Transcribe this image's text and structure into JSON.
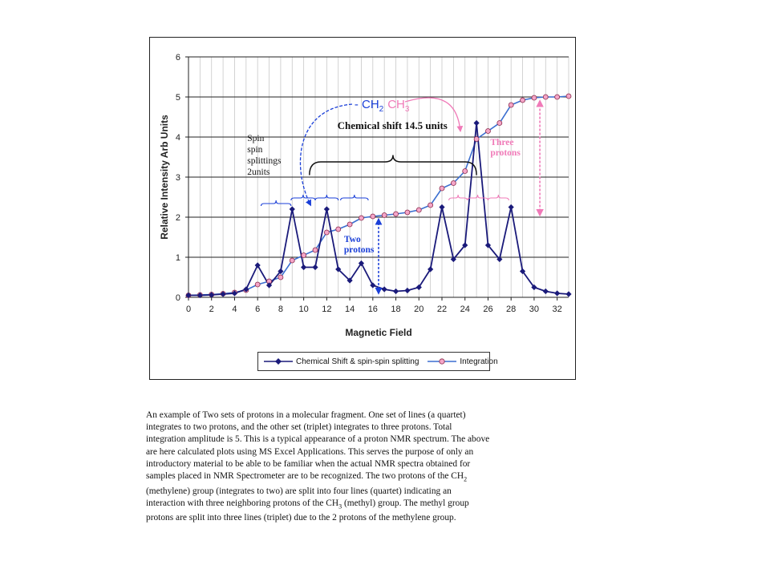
{
  "chart_data": {
    "type": "line",
    "xlabel": "Magnetic Field",
    "ylabel": "Relative Intensity Arb Units",
    "xlim": [
      0,
      33
    ],
    "ylim": [
      0,
      6
    ],
    "xticks": [
      0,
      2,
      4,
      6,
      8,
      10,
      12,
      14,
      16,
      18,
      20,
      22,
      24,
      26,
      28,
      30,
      32
    ],
    "yticks": [
      0,
      1,
      2,
      3,
      4,
      5,
      6
    ],
    "grid": true,
    "legend_position": "bottom",
    "series": [
      {
        "name": "Chemical Shift & spin-spin splitting",
        "color": "#1a1a7a",
        "marker": "diamond",
        "x": [
          0,
          1,
          2,
          3,
          4,
          5,
          6,
          7,
          8,
          9,
          10,
          11,
          12,
          13,
          14,
          15,
          16,
          17,
          18,
          19,
          20,
          21,
          22,
          23,
          24,
          25,
          26,
          27,
          28,
          29,
          30,
          31,
          32,
          33
        ],
        "values": [
          0.05,
          0.05,
          0.06,
          0.08,
          0.1,
          0.2,
          0.8,
          0.3,
          0.65,
          2.2,
          0.75,
          0.75,
          2.2,
          0.7,
          0.42,
          0.85,
          0.3,
          0.2,
          0.15,
          0.17,
          0.25,
          0.7,
          2.25,
          0.95,
          1.3,
          4.35,
          1.3,
          0.95,
          2.25,
          0.65,
          0.25,
          0.15,
          0.1,
          0.08
        ]
      },
      {
        "name": "Integration",
        "color": "#3b6fd0",
        "marker": "circle",
        "marker_fill": "#f4a6c8",
        "x": [
          0,
          1,
          2,
          3,
          4,
          5,
          6,
          7,
          8,
          9,
          10,
          11,
          12,
          13,
          14,
          15,
          16,
          17,
          18,
          19,
          20,
          21,
          22,
          23,
          24,
          25,
          26,
          27,
          28,
          29,
          30,
          31,
          32,
          33
        ],
        "values": [
          0.05,
          0.06,
          0.07,
          0.09,
          0.12,
          0.18,
          0.32,
          0.4,
          0.5,
          0.92,
          1.05,
          1.18,
          1.62,
          1.7,
          1.82,
          1.98,
          2.02,
          2.05,
          2.08,
          2.12,
          2.18,
          2.3,
          2.72,
          2.85,
          3.15,
          3.95,
          4.15,
          4.35,
          4.8,
          4.92,
          4.98,
          5.0,
          5.0,
          5.02
        ]
      }
    ],
    "annotations": {
      "group_prefix": "- CH",
      "group_prefix_sub": "2",
      "group_suffix": "CH",
      "group_suffix_sub": "3",
      "chemical_shift_label": "Chemical shift 14.5 units",
      "spin_label_lines": [
        "Spin",
        "spin",
        "splittings",
        "2units"
      ],
      "two_protons_lines": [
        "Two",
        "protons"
      ],
      "three_protons_lines": [
        "Three",
        "protons"
      ]
    }
  },
  "colors": {
    "methylene": "#1a3fd8",
    "methyl": "#f07ab8",
    "grid": "#c8c8c8"
  },
  "caption": {
    "l1": "An example of Two sets of protons in a molecular fragment. One set of lines (a quartet)",
    "l2": "integrates to two protons, and the other set (triplet) integrates to three protons. Total",
    "l3": "integration amplitude is 5. This is a typical appearance of a proton NMR spectrum. The above",
    "l4": "are here calculated plots using MS Excel Applications. This serves the purpose of only an",
    "l5": "introductory material to be able to be familiar when the actual NMR spectra obtained for",
    "l6a": "samples placed in NMR Spectrometer are to be recognized. The two protons of the CH",
    "l6sub": "2",
    "l7": "(methylene) group (integrates to two) are split into four lines (quartet) indicating an",
    "l8a": "interaction with three neighboring protons of the CH",
    "l8sub": "3",
    "l8b": " (methyl) group. The methyl group",
    "l9": "protons are split into three lines (triplet) due to the 2 protons of the methylene group."
  }
}
